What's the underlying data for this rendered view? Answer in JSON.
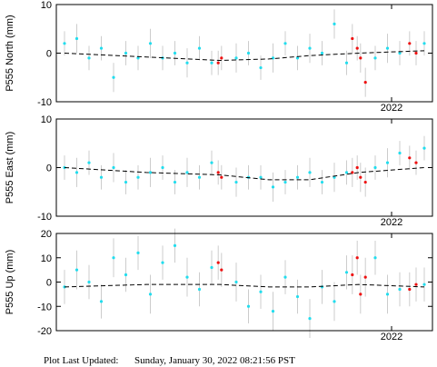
{
  "chart_data": [
    {
      "type": "scatter",
      "ylabel": "P555 North (mm)",
      "xlim": [
        2017.9,
        2022.5
      ],
      "xticks": [
        2022
      ],
      "ylim": [
        -10,
        10
      ],
      "yticks": [
        -10,
        0,
        10
      ],
      "series": [
        {
          "color": "#22ddee",
          "x": [
            2018.0,
            2018.15,
            2018.3,
            2018.45,
            2018.6,
            2018.75,
            2018.9,
            2019.05,
            2019.2,
            2019.35,
            2019.5,
            2019.65,
            2019.8,
            2020.1,
            2020.25,
            2020.4,
            2020.55,
            2020.7,
            2020.85,
            2021.0,
            2021.15,
            2021.3,
            2021.45,
            2021.8,
            2021.95,
            2022.1,
            2022.4
          ],
          "values": [
            2,
            3,
            -1,
            1,
            -5,
            0,
            -1,
            2,
            -1,
            0,
            -2,
            1,
            -2,
            -1,
            0,
            -3,
            -1,
            2,
            -1,
            1,
            0,
            6,
            -2,
            -1,
            1,
            0,
            2
          ],
          "errors": [
            2.5,
            3,
            2.5,
            2.5,
            3,
            2.5,
            2.5,
            3,
            2.5,
            2.5,
            3,
            2.5,
            2.5,
            3,
            2.5,
            2.5,
            3,
            2.5,
            2.5,
            3,
            2.5,
            3,
            2.5,
            2.5,
            3,
            2.5,
            2.5
          ]
        },
        {
          "color": "#ee1111",
          "x": [
            2019.88,
            2019.92,
            2021.52,
            2021.58,
            2021.62,
            2021.68,
            2022.22,
            2022.3
          ],
          "values": [
            -2,
            -1,
            3,
            1,
            -1,
            -6,
            2,
            0
          ],
          "errors": [
            2.5,
            2.5,
            3,
            2.5,
            3,
            3,
            2.5,
            2.5
          ]
        },
        {
          "color": "#000000",
          "style": "dashed",
          "x": [
            2018,
            2019,
            2019.9,
            2020.5,
            2021,
            2021.6,
            2022.4
          ],
          "values": [
            0,
            -0.8,
            -1.5,
            -1.2,
            -0.5,
            0,
            0.5
          ]
        }
      ]
    },
    {
      "type": "scatter",
      "ylabel": "P555 East (mm)",
      "xlim": [
        2017.9,
        2022.5
      ],
      "xticks": [
        2022
      ],
      "ylim": [
        -10,
        10
      ],
      "yticks": [
        -10,
        0,
        10
      ],
      "series": [
        {
          "color": "#22ddee",
          "x": [
            2018.0,
            2018.15,
            2018.3,
            2018.45,
            2018.6,
            2018.75,
            2018.9,
            2019.05,
            2019.2,
            2019.35,
            2019.5,
            2019.65,
            2019.8,
            2020.1,
            2020.25,
            2020.4,
            2020.55,
            2020.7,
            2020.85,
            2021.0,
            2021.15,
            2021.3,
            2021.45,
            2021.8,
            2021.95,
            2022.1,
            2022.4
          ],
          "values": [
            0,
            -1,
            1,
            -2,
            0,
            -3,
            -2,
            -1,
            0,
            -3,
            -1,
            -2,
            1,
            -3,
            -2,
            -2,
            -4,
            -3,
            -2,
            -1,
            -3,
            -2,
            -1,
            0,
            1,
            3,
            4
          ],
          "errors": [
            2.5,
            3,
            2.5,
            2.5,
            3,
            2.5,
            2.5,
            3,
            2.5,
            2.5,
            3,
            2.5,
            2.5,
            3,
            2.5,
            2.5,
            3,
            2.5,
            2.5,
            3,
            2.5,
            3,
            2.5,
            2.5,
            3,
            2.5,
            2.5
          ]
        },
        {
          "color": "#ee1111",
          "x": [
            2019.88,
            2019.92,
            2021.52,
            2021.58,
            2021.62,
            2021.68,
            2022.22,
            2022.3
          ],
          "values": [
            -1,
            -2,
            -1,
            0,
            -2,
            -3,
            2,
            1
          ],
          "errors": [
            2.5,
            2.5,
            3,
            2.5,
            3,
            3,
            2.5,
            2.5
          ]
        },
        {
          "color": "#000000",
          "style": "dashed",
          "x": [
            2018,
            2019,
            2019.9,
            2020.5,
            2021,
            2021.6,
            2022.4
          ],
          "values": [
            0,
            -1,
            -1.5,
            -2.5,
            -2.5,
            -1,
            0
          ]
        }
      ]
    },
    {
      "type": "scatter",
      "ylabel": "P555 Up (mm)",
      "xlim": [
        2017.9,
        2022.5
      ],
      "xticks": [
        2022
      ],
      "ylim": [
        -20,
        20
      ],
      "yticks": [
        -20,
        -10,
        0,
        10,
        20
      ],
      "series": [
        {
          "color": "#22ddee",
          "x": [
            2018.0,
            2018.15,
            2018.3,
            2018.45,
            2018.6,
            2018.75,
            2018.9,
            2019.05,
            2019.2,
            2019.35,
            2019.5,
            2019.65,
            2019.8,
            2020.1,
            2020.25,
            2020.4,
            2020.55,
            2020.7,
            2020.85,
            2021.0,
            2021.15,
            2021.3,
            2021.45,
            2021.8,
            2021.95,
            2022.1,
            2022.4
          ],
          "values": [
            -2,
            5,
            0,
            -8,
            10,
            3,
            12,
            -5,
            8,
            15,
            2,
            -3,
            6,
            0,
            -10,
            -4,
            -12,
            2,
            -6,
            -15,
            -2,
            -8,
            4,
            10,
            -5,
            -3,
            -1
          ],
          "errors": [
            7,
            8,
            7,
            7,
            8,
            7,
            7,
            8,
            7,
            7,
            8,
            7,
            7,
            8,
            7,
            7,
            8,
            7,
            7,
            8,
            7,
            8,
            7,
            7,
            8,
            7,
            7
          ]
        },
        {
          "color": "#ee1111",
          "x": [
            2019.88,
            2019.92,
            2021.52,
            2021.58,
            2021.62,
            2021.68,
            2022.22,
            2022.3
          ],
          "values": [
            8,
            5,
            3,
            10,
            -5,
            2,
            -3,
            -1
          ],
          "errors": [
            7,
            7,
            8,
            7,
            8,
            8,
            7,
            7
          ]
        },
        {
          "color": "#000000",
          "style": "dashed",
          "x": [
            2018,
            2019,
            2019.9,
            2020.5,
            2021,
            2021.6,
            2022.4
          ],
          "values": [
            -2,
            -1,
            -1,
            -2,
            -2,
            -1,
            -2
          ]
        }
      ]
    }
  ],
  "footer": {
    "label": "Plot Last Updated:",
    "text": "Sunday, January 30, 2022 08:21:56 PST"
  }
}
